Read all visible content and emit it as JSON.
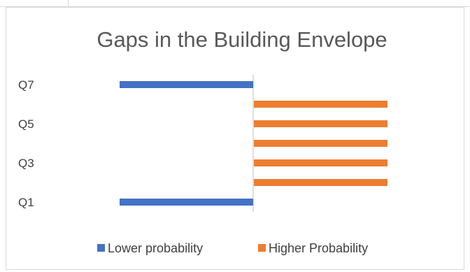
{
  "chart_data": {
    "type": "bar",
    "orientation": "horizontal",
    "title": "Gaps in the Building Envelope",
    "categories": [
      "Q1",
      "Q2",
      "Q3",
      "Q4",
      "Q5",
      "Q6",
      "Q7"
    ],
    "tick_labels_shown": [
      "Q1",
      "Q3",
      "Q5",
      "Q7"
    ],
    "series": [
      {
        "name": "Lower probability",
        "color": "#4472C4",
        "values": [
          -1,
          0,
          0,
          0,
          0,
          0,
          -1
        ]
      },
      {
        "name": "Higher Probability",
        "color": "#ED7D31",
        "values": [
          0,
          1,
          1,
          1,
          1,
          1,
          0
        ]
      }
    ],
    "xlim": [
      -1,
      1
    ],
    "grid": false,
    "legend_position": "bottom"
  }
}
